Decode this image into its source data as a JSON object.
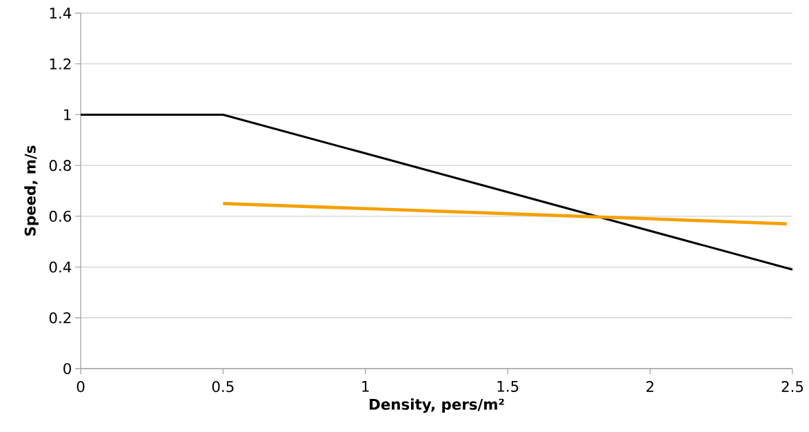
{
  "chart_data": {
    "type": "line",
    "xlabel": "Density, pers/m²",
    "ylabel": "Speed, m/s",
    "xlim": [
      0,
      2.5
    ],
    "ylim": [
      0,
      1.4
    ],
    "xticks": [
      0,
      0.5,
      1,
      1.5,
      2,
      2.5
    ],
    "yticks": [
      0,
      0.2,
      0.4,
      0.6,
      0.8,
      1,
      1.2,
      1.4
    ],
    "grid": "y",
    "series": [
      {
        "color": "#000000",
        "x": [
          0,
          0.5,
          2.5
        ],
        "values": [
          1.0,
          1.0,
          0.39
        ]
      },
      {
        "color": "#f5a000",
        "x": [
          0.5,
          1,
          1.5,
          2,
          2.48
        ],
        "values": [
          0.65,
          0.63,
          0.61,
          0.59,
          0.57
        ]
      }
    ]
  }
}
